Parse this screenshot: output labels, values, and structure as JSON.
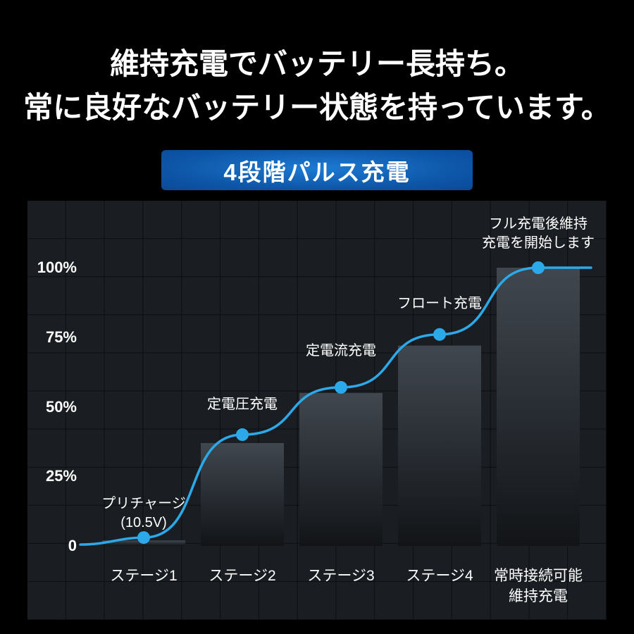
{
  "header": {
    "line1": "維持充電でバッテリー長持ち。",
    "line2": "常に良好なバッテリー状態を持っています。"
  },
  "banner": {
    "label": "4段階パルス充電",
    "bg_color": "#0e56a8"
  },
  "chart_data": {
    "type": "line",
    "title": "4段階パルス充電",
    "categories": [
      [
        "ステージ1"
      ],
      [
        "ステージ2"
      ],
      [
        "ステージ3"
      ],
      [
        "ステージ4"
      ],
      [
        "常時接続可能",
        "維持充電"
      ]
    ],
    "values": [
      3,
      40,
      57,
      76,
      100
    ],
    "bar_values": [
      2,
      37,
      55,
      72,
      100
    ],
    "yticks": [
      {
        "label": "100%",
        "value": 100
      },
      {
        "label": "75%",
        "value": 75
      },
      {
        "label": "50%",
        "value": 50
      },
      {
        "label": "25%",
        "value": 25
      },
      {
        "label": "0",
        "value": 0
      }
    ],
    "ylim": [
      0,
      100
    ],
    "annotations": [
      [
        "プリチャージ",
        "(10.5V)"
      ],
      [
        "定電圧充電"
      ],
      [
        "定電流充電"
      ],
      [
        "フロート充電"
      ],
      [
        "フル充電後維持",
        "充電を開始します"
      ]
    ],
    "line_color": "#2ba9e8",
    "dot_color": "#2ba9e8",
    "bar_gradient": [
      "#40474f",
      "#121417"
    ],
    "grid": true,
    "legend": "none"
  }
}
